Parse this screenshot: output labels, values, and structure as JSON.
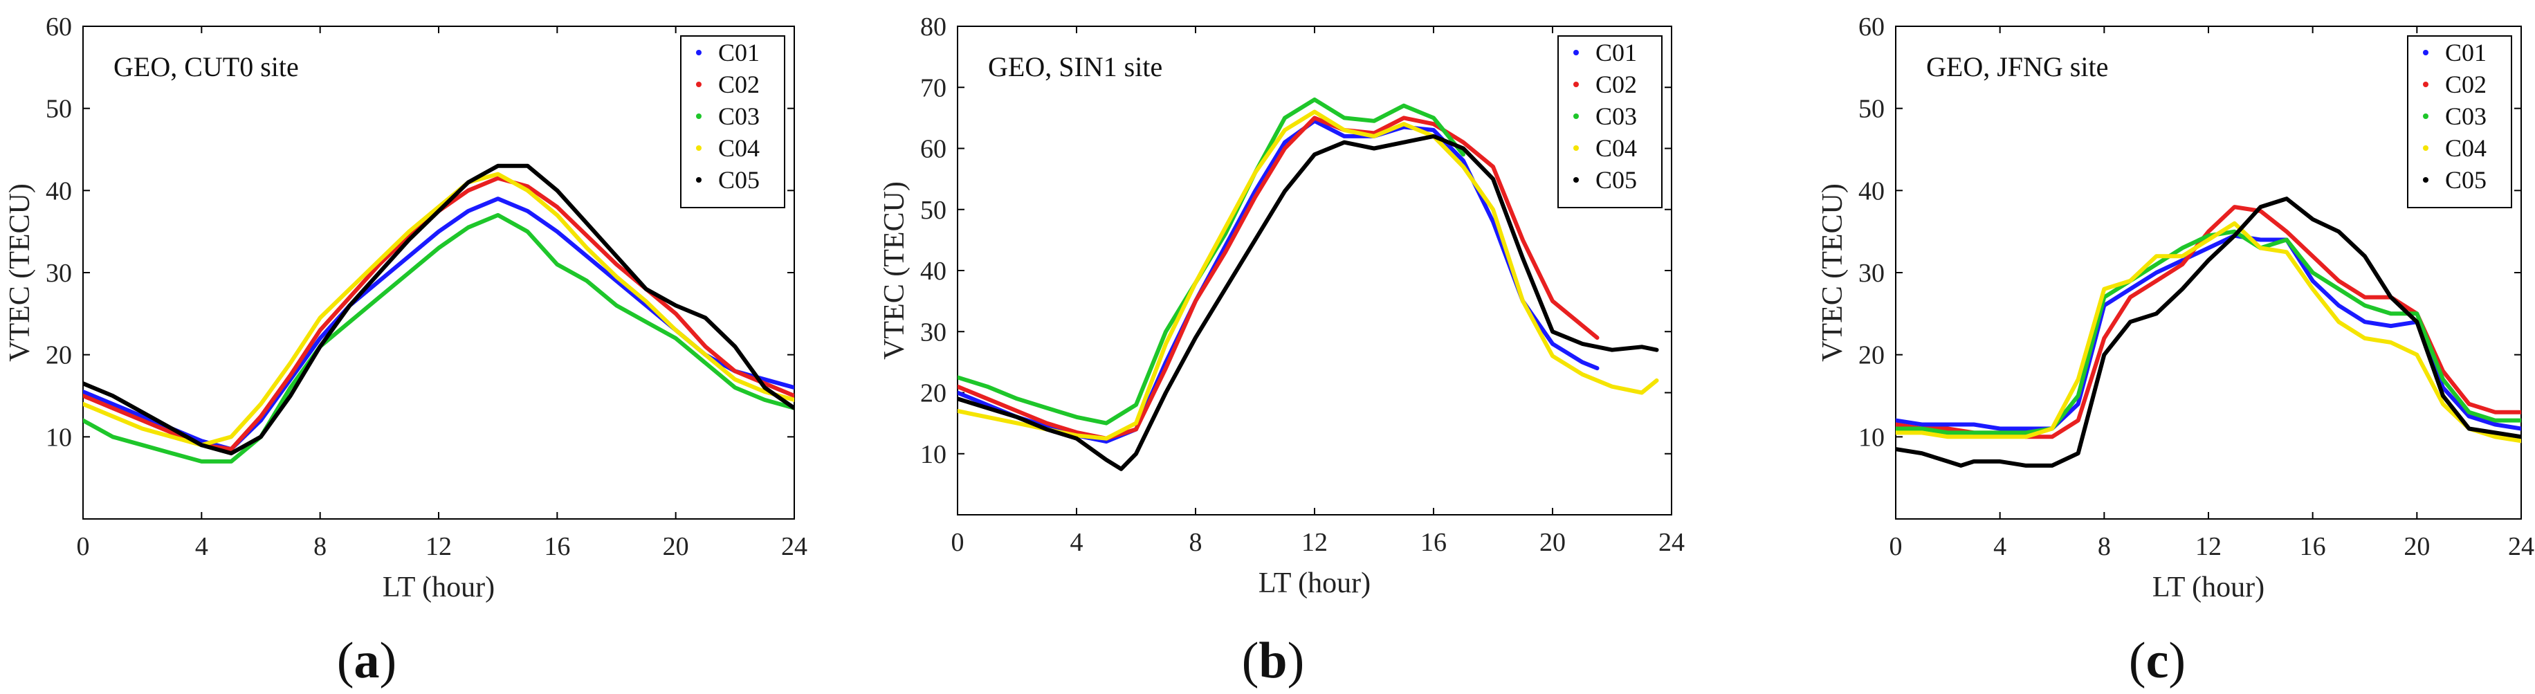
{
  "chart_data": [
    {
      "type": "line",
      "panel": "a",
      "caption": "a",
      "annotation": "GEO, CUT0 site",
      "xlabel": "LT (hour)",
      "ylabel": "VTEC (TECU)",
      "xlim": [
        0,
        24
      ],
      "ylim": [
        0,
        60
      ],
      "xticks": [
        "0",
        "4",
        "8",
        "12",
        "16",
        "20",
        "24"
      ],
      "yticks": [
        "10",
        "20",
        "30",
        "40",
        "50",
        "60"
      ],
      "grid": false,
      "legend": "top-right",
      "series": [
        {
          "name": "C01",
          "color": "#1a1aff",
          "style": "solid",
          "x": [
            0,
            1,
            2,
            3,
            4,
            5,
            6,
            7,
            8,
            9,
            10,
            11,
            12,
            13,
            14,
            15,
            16,
            17,
            18,
            19,
            20,
            21,
            22,
            23,
            24
          ],
          "y": [
            15.5,
            14,
            12.5,
            11,
            9.5,
            8.5,
            12,
            17,
            22,
            26,
            29,
            32,
            35,
            37.5,
            39,
            37.5,
            35,
            32,
            29,
            26,
            23,
            20,
            18,
            17,
            16
          ]
        },
        {
          "name": "C02",
          "color": "#e82020",
          "style": "solid",
          "x": [
            0,
            1,
            2,
            3,
            4,
            5,
            6,
            7,
            8,
            9,
            10,
            11,
            12,
            13,
            14,
            15,
            16,
            17,
            18,
            19,
            20,
            21,
            22,
            23,
            24
          ],
          "y": [
            15,
            13.5,
            12,
            10.5,
            9,
            8.5,
            12.5,
            17.5,
            23,
            27,
            31,
            34.5,
            37.5,
            40,
            41.5,
            40.5,
            38,
            34.5,
            31,
            28,
            25,
            21,
            18,
            16.5,
            15
          ]
        },
        {
          "name": "C03",
          "color": "#1ec62a",
          "style": "solid",
          "x": [
            0,
            1,
            2,
            3,
            4,
            5,
            6,
            7,
            8,
            9,
            10,
            11,
            12,
            13,
            14,
            15,
            16,
            17,
            18,
            19,
            20,
            21,
            22,
            23,
            24
          ],
          "y": [
            12,
            10,
            9,
            8,
            7,
            7,
            10,
            16,
            21,
            24,
            27,
            30,
            33,
            35.5,
            37,
            35,
            31,
            29,
            26,
            24,
            22,
            19,
            16,
            14.5,
            13.5
          ]
        },
        {
          "name": "C04",
          "color": "#f5e400",
          "style": "solid",
          "x": [
            0,
            1,
            2,
            3,
            4,
            5,
            6,
            7,
            8,
            9,
            10,
            11,
            12,
            13,
            14,
            15,
            16,
            17,
            18,
            19,
            20,
            21,
            22,
            23,
            24
          ],
          "y": [
            14,
            12.5,
            11,
            10,
            9,
            10,
            14,
            19,
            24.5,
            28,
            31.5,
            35,
            38,
            41,
            42,
            40,
            37,
            33,
            29.5,
            26.5,
            23,
            20,
            17,
            15.5,
            14.5
          ]
        },
        {
          "name": "C05",
          "color": "#000000",
          "style": "solid",
          "x": [
            0,
            1,
            2,
            3,
            4,
            5,
            6,
            7,
            8,
            9,
            10,
            11,
            12,
            13,
            14,
            15,
            16,
            17,
            18,
            19,
            20,
            21,
            22,
            23,
            24
          ],
          "y": [
            16.5,
            15,
            13,
            11,
            9,
            8,
            10,
            15,
            21,
            26,
            30,
            34,
            37.5,
            41,
            43,
            43,
            40,
            36,
            32,
            28,
            26,
            24.5,
            21,
            16,
            13.5
          ]
        }
      ]
    },
    {
      "type": "line",
      "panel": "b",
      "caption": "b",
      "annotation": "GEO, SIN1 site",
      "xlabel": "LT (hour)",
      "ylabel": "VTEC (TECU)",
      "xlim": [
        0,
        24
      ],
      "ylim": [
        0,
        80
      ],
      "xticks": [
        "0",
        "4",
        "8",
        "12",
        "16",
        "20",
        "24"
      ],
      "yticks": [
        "10",
        "20",
        "30",
        "40",
        "50",
        "60",
        "70",
        "80"
      ],
      "grid": false,
      "legend": "top-right",
      "series": [
        {
          "name": "C01",
          "color": "#1a1aff",
          "style": "solid",
          "x": [
            0,
            1,
            2,
            3,
            4,
            5,
            6,
            7,
            8,
            9,
            10,
            11,
            12,
            13,
            14,
            15,
            16,
            17,
            18,
            19,
            20,
            21,
            21.5
          ],
          "y": [
            20,
            18,
            16,
            14.5,
            13,
            12,
            14,
            25,
            35,
            44,
            53,
            61,
            64.5,
            62,
            62,
            63.5,
            63,
            58,
            48,
            35,
            28,
            25,
            24
          ]
        },
        {
          "name": "C02",
          "color": "#e82020",
          "style": "solid",
          "x": [
            0,
            1,
            2,
            3,
            4,
            5,
            6,
            7,
            8,
            9,
            10,
            11,
            12,
            13,
            14,
            15,
            16,
            17,
            18,
            19,
            20,
            21,
            21.5
          ],
          "y": [
            21,
            19,
            17,
            15,
            13.5,
            12.5,
            14,
            24,
            35,
            43,
            52,
            60,
            65,
            63,
            62.5,
            65,
            64,
            61,
            57,
            45,
            35,
            31,
            29
          ]
        },
        {
          "name": "C03",
          "color": "#1ec62a",
          "style": "solid",
          "x": [
            0,
            1,
            2,
            3,
            4,
            5,
            6,
            7,
            8,
            9,
            10,
            11,
            12,
            13,
            14,
            15,
            16,
            17
          ],
          "y": [
            22.5,
            21,
            19,
            17.5,
            16,
            15,
            18,
            30,
            38,
            46,
            56,
            65,
            68,
            65,
            64.5,
            67,
            65,
            59
          ]
        },
        {
          "name": "C04",
          "color": "#f5e400",
          "style": "solid",
          "x": [
            0,
            1,
            2,
            3,
            4,
            5,
            6,
            7,
            8,
            9,
            10,
            11,
            12,
            13,
            14,
            15,
            16,
            17,
            18,
            19,
            20,
            21,
            22,
            23,
            23.5
          ],
          "y": [
            17,
            16,
            15,
            14,
            13,
            12.5,
            15,
            28,
            38,
            47,
            56,
            63,
            66,
            63,
            62,
            64,
            62,
            57,
            50,
            35,
            26,
            23,
            21,
            20,
            22
          ]
        },
        {
          "name": "C05",
          "color": "#000000",
          "style": "solid",
          "x": [
            0,
            1,
            2,
            3,
            4,
            5,
            5.5,
            6,
            7,
            8,
            9,
            10,
            11,
            12,
            13,
            14,
            15,
            16,
            17,
            18,
            19,
            20,
            21,
            22,
            23,
            23.5
          ],
          "y": [
            19,
            17.5,
            16,
            14,
            12.5,
            9,
            7.5,
            10,
            20,
            29,
            37,
            45,
            53,
            59,
            61,
            60,
            61,
            62,
            60,
            55,
            42,
            30,
            28,
            27,
            27.5,
            27
          ]
        }
      ]
    },
    {
      "type": "line",
      "panel": "c",
      "caption": "c",
      "annotation": "GEO, JFNG site",
      "xlabel": "LT (hour)",
      "ylabel": "VTEC (TECU)",
      "xlim": [
        0,
        24
      ],
      "ylim": [
        0,
        60
      ],
      "xticks": [
        "0",
        "4",
        "8",
        "12",
        "16",
        "20",
        "24"
      ],
      "yticks": [
        "10",
        "20",
        "30",
        "40",
        "50",
        "60"
      ],
      "grid": false,
      "legend": "top-right",
      "series": [
        {
          "name": "C01",
          "color": "#1a1aff",
          "style": "solid",
          "x": [
            0,
            1,
            2,
            3,
            4,
            5,
            6,
            7,
            8,
            9,
            10,
            11,
            12,
            13,
            14,
            15,
            16,
            17,
            18,
            19,
            20,
            21,
            22,
            23,
            24
          ],
          "y": [
            12,
            11.5,
            11.5,
            11.5,
            11,
            11,
            11,
            14,
            26,
            28,
            30,
            31.5,
            33,
            34.5,
            34,
            34,
            29,
            26,
            24,
            23.5,
            24,
            16,
            12.5,
            11.5,
            11
          ]
        },
        {
          "name": "C02",
          "color": "#e82020",
          "style": "solid",
          "x": [
            0,
            1,
            2,
            3,
            4,
            5,
            6,
            7,
            8,
            9,
            10,
            11,
            12,
            13,
            14,
            15,
            16,
            17,
            18,
            19,
            20,
            21,
            22,
            23,
            24
          ],
          "y": [
            11.5,
            11,
            11,
            10.5,
            10.5,
            10,
            10,
            12,
            22,
            27,
            29,
            31,
            35,
            38,
            37.5,
            35,
            32,
            29,
            27,
            27,
            25,
            18,
            14,
            13,
            13
          ]
        },
        {
          "name": "C03",
          "color": "#1ec62a",
          "style": "solid",
          "x": [
            0,
            1,
            2,
            3,
            4,
            5,
            6,
            7,
            8,
            9,
            10,
            11,
            12,
            13,
            14,
            15,
            16,
            17,
            18,
            19,
            20,
            21,
            22,
            23,
            24
          ],
          "y": [
            11,
            11,
            10.5,
            10.5,
            10.5,
            10.5,
            11,
            15,
            27,
            29,
            31,
            33,
            34.5,
            35,
            33,
            34,
            30,
            28,
            26,
            25,
            25,
            17,
            13,
            12,
            12
          ]
        },
        {
          "name": "C04",
          "color": "#f5e400",
          "style": "solid",
          "x": [
            0,
            1,
            2,
            3,
            4,
            5,
            6,
            7,
            8,
            9,
            10,
            11,
            12,
            13,
            14,
            15,
            16,
            17,
            18,
            19,
            20,
            21,
            22,
            23,
            24
          ],
          "y": [
            10.5,
            10.5,
            10,
            10,
            10,
            10,
            11,
            17,
            28,
            29,
            32,
            32,
            34,
            36,
            33,
            32.5,
            28,
            24,
            22,
            21.5,
            20,
            14,
            11,
            10,
            9.5
          ]
        },
        {
          "name": "C05",
          "color": "#000000",
          "style": "solid",
          "x": [
            0,
            1,
            2,
            2.5,
            3,
            4,
            5,
            6,
            7,
            8,
            9,
            10,
            11,
            12,
            13,
            14,
            15,
            16,
            17,
            18,
            19,
            20,
            21,
            22,
            23,
            24
          ],
          "y": [
            8.5,
            8,
            7,
            6.5,
            7,
            7,
            6.5,
            6.5,
            8,
            20,
            24,
            25,
            28,
            31.5,
            34.5,
            38,
            39,
            36.5,
            35,
            32,
            27,
            24,
            15,
            11,
            10.5,
            10
          ]
        }
      ]
    }
  ]
}
